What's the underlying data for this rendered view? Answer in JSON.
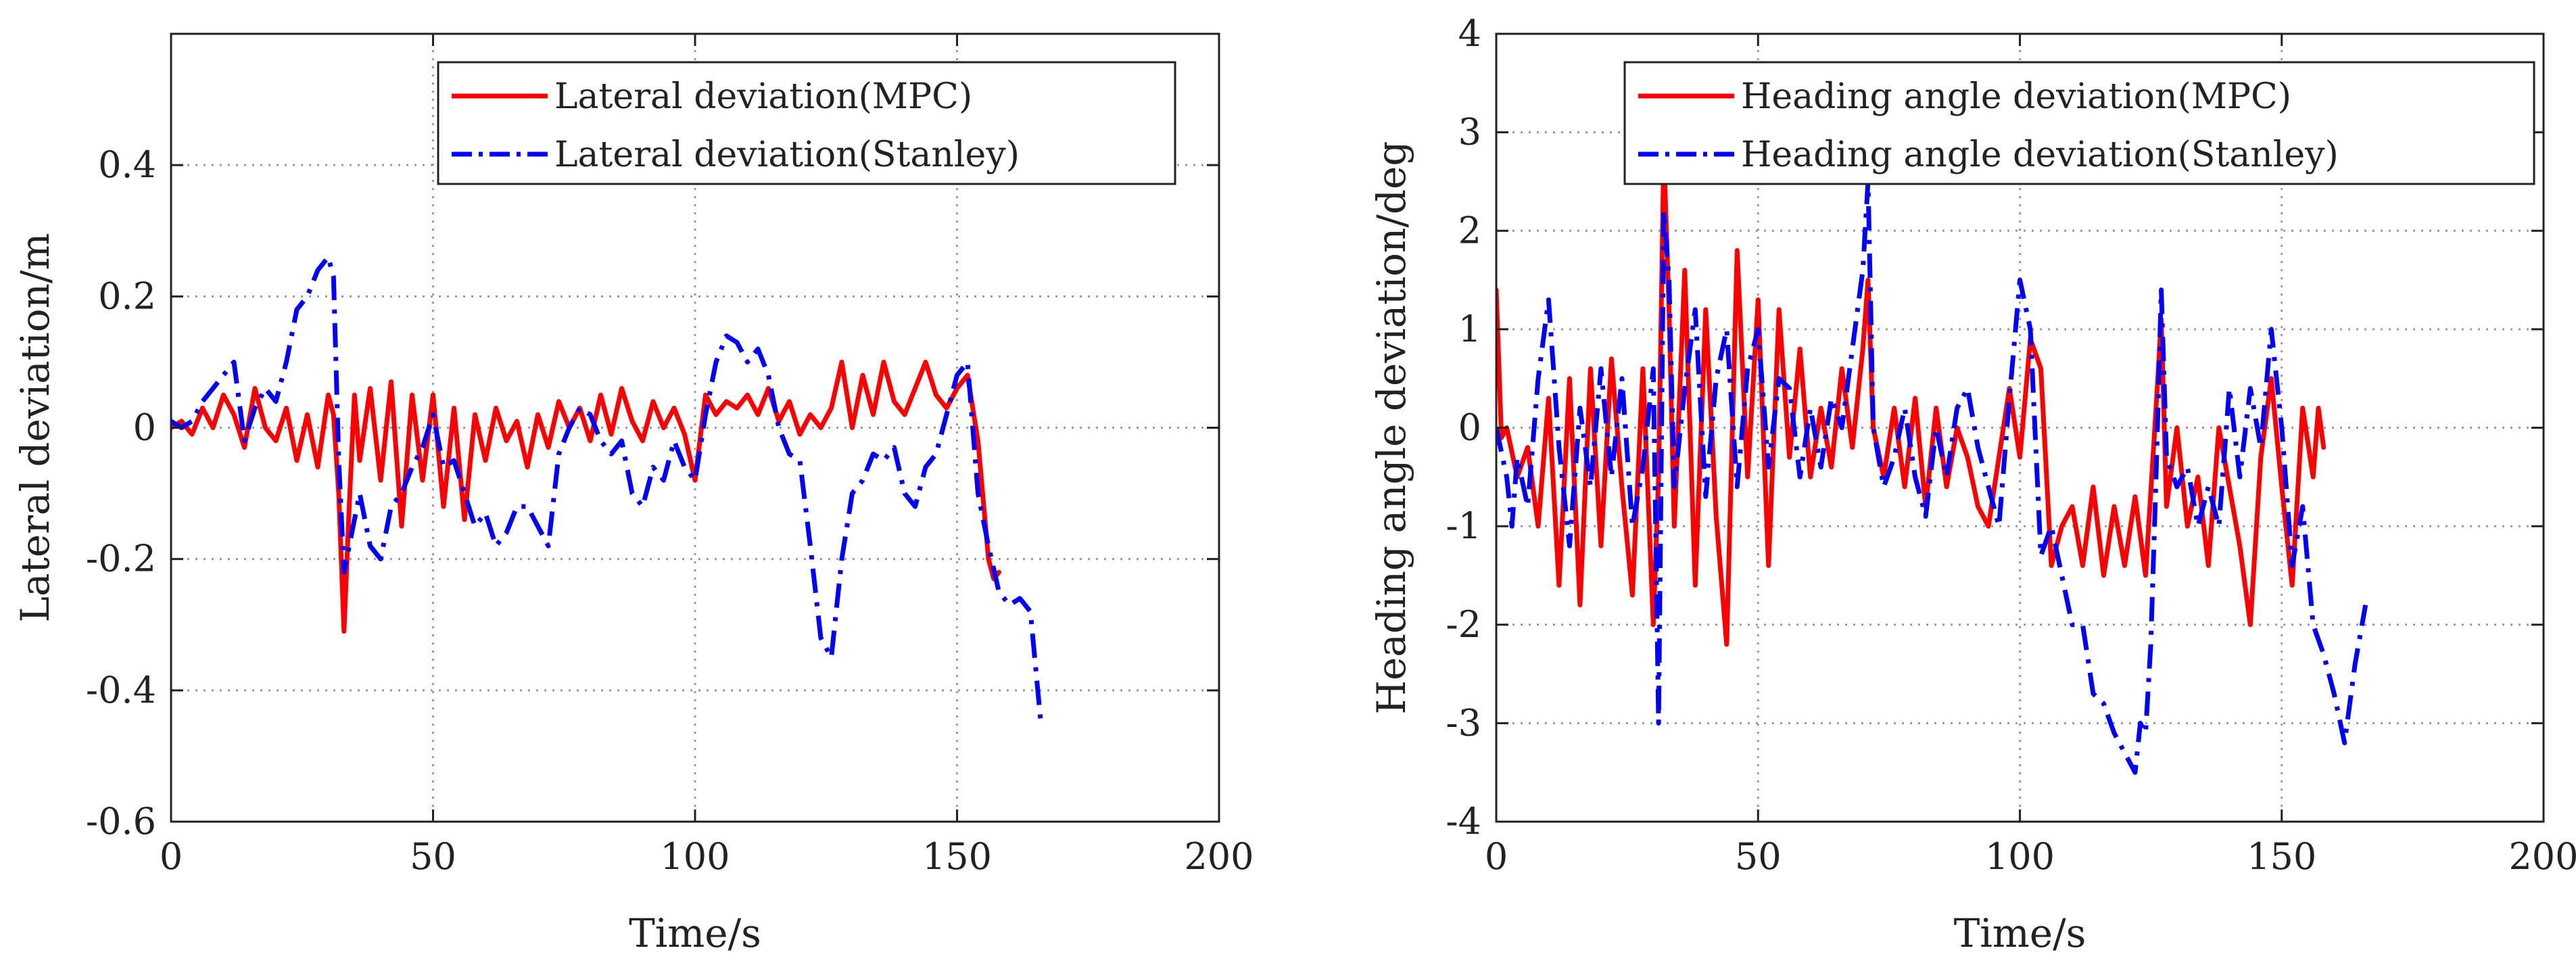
{
  "chart_data": [
    {
      "type": "line",
      "title": "",
      "xlabel": "Time/s",
      "ylabel": "Lateral deviation/m",
      "xlim": [
        0,
        200
      ],
      "ylim": [
        -0.6,
        0.6
      ],
      "xticks": [
        0,
        50,
        100,
        150,
        200
      ],
      "yticks": [
        -0.6,
        -0.4,
        -0.2,
        0,
        0.2,
        0.4
      ],
      "xtick_labels": [
        "0",
        "50",
        "100",
        "150",
        "200"
      ],
      "ytick_labels": [
        "-0.6",
        "-0.4",
        "-0.2",
        "0",
        "0.2",
        "0.4"
      ],
      "grid": true,
      "legend_position": "top-right",
      "series": [
        {
          "name": "Lateral deviation(MPC)",
          "color": "#ff0000",
          "dash": "solid",
          "x": [
            0,
            2,
            4,
            6,
            8,
            10,
            12,
            14,
            16,
            18,
            20,
            22,
            24,
            26,
            28,
            30,
            31,
            32,
            33,
            34,
            35,
            36,
            38,
            40,
            42,
            44,
            46,
            48,
            50,
            52,
            54,
            56,
            58,
            60,
            62,
            64,
            66,
            68,
            70,
            72,
            74,
            76,
            78,
            80,
            82,
            84,
            86,
            88,
            90,
            92,
            94,
            96,
            98,
            100,
            102,
            104,
            106,
            108,
            110,
            112,
            114,
            116,
            118,
            120,
            122,
            124,
            126,
            128,
            130,
            132,
            134,
            136,
            138,
            140,
            142,
            144,
            146,
            148,
            150,
            152,
            154,
            156,
            157,
            158
          ],
          "values": [
            0.0,
            0.01,
            -0.01,
            0.03,
            0.0,
            0.05,
            0.02,
            -0.03,
            0.06,
            0.0,
            -0.02,
            0.03,
            -0.05,
            0.02,
            -0.06,
            0.05,
            0.02,
            -0.1,
            -0.31,
            -0.12,
            0.05,
            -0.05,
            0.06,
            -0.08,
            0.07,
            -0.15,
            0.05,
            -0.08,
            0.05,
            -0.12,
            0.03,
            -0.14,
            0.02,
            -0.05,
            0.03,
            -0.02,
            0.01,
            -0.06,
            0.02,
            -0.03,
            0.04,
            0.0,
            0.03,
            -0.02,
            0.05,
            -0.01,
            0.06,
            0.01,
            -0.02,
            0.04,
            0.0,
            0.03,
            -0.01,
            -0.08,
            0.05,
            0.02,
            0.04,
            0.03,
            0.05,
            0.02,
            0.06,
            0.01,
            0.04,
            -0.01,
            0.02,
            0.0,
            0.03,
            0.1,
            0.0,
            0.08,
            0.02,
            0.1,
            0.04,
            0.02,
            0.06,
            0.1,
            0.05,
            0.03,
            0.06,
            0.08,
            -0.02,
            -0.2,
            -0.23,
            -0.22
          ]
        },
        {
          "name": "Lateral deviation(Stanley)",
          "color": "#0000ff",
          "dash": "dash-dot",
          "x": [
            0,
            2,
            4,
            6,
            8,
            10,
            12,
            14,
            16,
            18,
            20,
            22,
            24,
            26,
            28,
            30,
            31,
            32,
            33,
            34,
            36,
            38,
            40,
            42,
            44,
            46,
            48,
            50,
            52,
            54,
            56,
            58,
            60,
            62,
            64,
            66,
            68,
            70,
            72,
            74,
            76,
            78,
            80,
            82,
            84,
            86,
            88,
            90,
            92,
            94,
            96,
            98,
            100,
            102,
            104,
            106,
            108,
            110,
            112,
            114,
            116,
            118,
            120,
            122,
            124,
            126,
            128,
            130,
            132,
            134,
            136,
            138,
            140,
            142,
            144,
            146,
            148,
            150,
            152,
            154,
            156,
            158,
            160,
            162,
            164,
            166
          ],
          "values": [
            0.01,
            0.0,
            0.01,
            0.04,
            0.06,
            0.08,
            0.1,
            -0.02,
            0.03,
            0.06,
            0.04,
            0.1,
            0.18,
            0.2,
            0.24,
            0.26,
            0.23,
            -0.05,
            -0.22,
            -0.18,
            -0.1,
            -0.18,
            -0.2,
            -0.12,
            -0.1,
            -0.06,
            -0.03,
            0.02,
            -0.06,
            -0.05,
            -0.1,
            -0.15,
            -0.13,
            -0.18,
            -0.16,
            -0.12,
            -0.12,
            -0.15,
            -0.18,
            -0.04,
            0.0,
            0.03,
            0.02,
            -0.02,
            -0.04,
            -0.02,
            -0.1,
            -0.12,
            -0.06,
            -0.08,
            -0.02,
            -0.06,
            -0.08,
            0.02,
            0.1,
            0.14,
            0.13,
            0.1,
            0.12,
            0.08,
            0.0,
            -0.04,
            -0.05,
            -0.18,
            -0.32,
            -0.35,
            -0.2,
            -0.1,
            -0.08,
            -0.04,
            -0.05,
            -0.03,
            -0.1,
            -0.12,
            -0.06,
            -0.04,
            0.02,
            0.08,
            0.1,
            -0.1,
            -0.18,
            -0.25,
            -0.27,
            -0.26,
            -0.28,
            -0.45
          ]
        }
      ]
    },
    {
      "type": "line",
      "title": "",
      "xlabel": "Time/s",
      "ylabel": "Heading angle deviation/deg",
      "xlim": [
        0,
        200
      ],
      "ylim": [
        -4,
        4
      ],
      "xticks": [
        0,
        50,
        100,
        150,
        200
      ],
      "yticks": [
        -4,
        -3,
        -2,
        -1,
        0,
        1,
        2,
        3,
        4
      ],
      "xtick_labels": [
        "0",
        "50",
        "100",
        "150",
        "200"
      ],
      "ytick_labels": [
        "-4",
        "-3",
        "-2",
        "-1",
        "0",
        "1",
        "2",
        "3",
        "4"
      ],
      "grid": true,
      "legend_position": "top-right",
      "series": [
        {
          "name": "Heading angle deviation(MPC)",
          "color": "#ff0000",
          "dash": "solid",
          "x": [
            0,
            1,
            2,
            4,
            6,
            8,
            10,
            12,
            14,
            16,
            18,
            20,
            22,
            24,
            26,
            28,
            30,
            31,
            32,
            33,
            34,
            36,
            38,
            40,
            42,
            44,
            46,
            48,
            50,
            52,
            54,
            56,
            58,
            60,
            62,
            64,
            66,
            68,
            70,
            71,
            72,
            74,
            76,
            78,
            80,
            82,
            84,
            86,
            88,
            90,
            92,
            94,
            96,
            98,
            100,
            102,
            104,
            106,
            108,
            110,
            112,
            114,
            116,
            118,
            120,
            122,
            124,
            126,
            127,
            128,
            130,
            132,
            134,
            136,
            138,
            140,
            142,
            144,
            146,
            148,
            150,
            152,
            154,
            156,
            157,
            158
          ],
          "values": [
            1.4,
            -0.1,
            0.0,
            -0.5,
            -0.2,
            -1.0,
            0.3,
            -1.6,
            0.5,
            -1.8,
            0.6,
            -1.2,
            0.7,
            -0.6,
            -1.7,
            0.6,
            -2.0,
            -0.5,
            2.8,
            1.2,
            -1.0,
            1.6,
            -1.6,
            1.2,
            -0.9,
            -2.2,
            1.8,
            -0.5,
            1.3,
            -1.4,
            1.2,
            -0.3,
            0.8,
            -0.5,
            0.2,
            -0.4,
            0.6,
            -0.2,
            0.8,
            1.5,
            0.0,
            -0.5,
            0.2,
            -0.6,
            0.3,
            -0.8,
            0.2,
            -0.6,
            0.0,
            -0.3,
            -0.8,
            -1.0,
            -0.3,
            0.4,
            -0.3,
            0.9,
            0.6,
            -1.4,
            -1.0,
            -0.8,
            -1.4,
            -0.6,
            -1.5,
            -0.8,
            -1.4,
            -0.7,
            -1.5,
            0.2,
            1.1,
            -0.8,
            0.0,
            -1.0,
            -0.5,
            -1.4,
            0.0,
            -0.6,
            -1.2,
            -2.0,
            -0.3,
            0.5,
            -0.6,
            -1.6,
            0.2,
            -0.5,
            0.2,
            -0.2
          ]
        },
        {
          "name": "Heading angle deviation(Stanley)",
          "color": "#0000ff",
          "dash": "dash-dot",
          "x": [
            0,
            2,
            3,
            4,
            6,
            8,
            10,
            12,
            14,
            16,
            18,
            20,
            22,
            24,
            26,
            28,
            30,
            31,
            32,
            33,
            34,
            36,
            38,
            40,
            42,
            44,
            46,
            48,
            50,
            52,
            54,
            56,
            58,
            60,
            62,
            64,
            66,
            68,
            70,
            71,
            72,
            74,
            76,
            78,
            80,
            82,
            84,
            86,
            88,
            90,
            92,
            94,
            96,
            98,
            100,
            102,
            104,
            106,
            108,
            110,
            112,
            114,
            116,
            118,
            120,
            122,
            123,
            124,
            125,
            126,
            127,
            128,
            130,
            132,
            134,
            136,
            138,
            140,
            142,
            144,
            146,
            148,
            150,
            152,
            154,
            156,
            158,
            160,
            162,
            164,
            166
          ],
          "values": [
            0.0,
            -0.5,
            -1.0,
            -0.3,
            -0.8,
            0.5,
            1.3,
            -0.2,
            -1.2,
            0.2,
            -0.6,
            0.6,
            -0.5,
            0.5,
            -1.0,
            -0.4,
            0.6,
            -3.0,
            2.2,
            1.5,
            -0.6,
            0.4,
            1.2,
            -0.7,
            0.5,
            1.0,
            -0.6,
            0.6,
            1.0,
            -0.4,
            0.5,
            0.4,
            -0.5,
            0.2,
            -0.4,
            0.3,
            0.0,
            0.8,
            1.6,
            2.5,
            0.0,
            -0.6,
            -0.3,
            0.2,
            -0.5,
            -0.9,
            0.0,
            -0.5,
            0.2,
            0.4,
            -0.2,
            -0.6,
            -1.0,
            0.3,
            1.5,
            1.0,
            -1.3,
            -1.0,
            -1.5,
            -2.0,
            -2.0,
            -2.7,
            -2.8,
            -3.1,
            -3.3,
            -3.5,
            -3.0,
            -3.1,
            -2.2,
            -0.5,
            1.4,
            -0.3,
            -0.6,
            -0.4,
            -1.0,
            -0.6,
            -1.0,
            0.4,
            -0.5,
            0.4,
            -0.2,
            1.0,
            0.0,
            -1.4,
            -0.8,
            -2.0,
            -2.3,
            -2.7,
            -3.2,
            -2.4,
            -1.8
          ]
        }
      ]
    }
  ]
}
